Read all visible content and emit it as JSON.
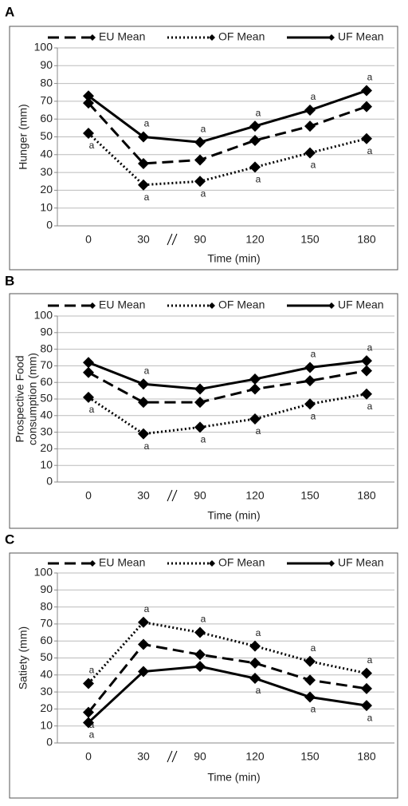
{
  "chart_data": [
    {
      "type": "line",
      "panel": "A",
      "ylabel": "Hunger (mm)",
      "xlabel": "Time (min)",
      "categories": [
        "0",
        "30",
        "90",
        "120",
        "150",
        "180"
      ],
      "ylim": [
        0,
        100
      ],
      "yticks": [
        0,
        10,
        20,
        30,
        40,
        50,
        60,
        70,
        80,
        90,
        100
      ],
      "grid": true,
      "series": [
        {
          "name": "EU Mean",
          "color": "#000000",
          "dash": "dashed",
          "values": [
            69,
            35,
            37,
            48,
            56,
            67
          ],
          "annotations": [
            null,
            null,
            null,
            null,
            null,
            null
          ]
        },
        {
          "name": "OF Mean",
          "color": "#000000",
          "dash": "dotted",
          "values": [
            52,
            23,
            25,
            33,
            41,
            49
          ],
          "annotations": [
            "a",
            "a",
            "a",
            "a",
            "a",
            "a"
          ]
        },
        {
          "name": "UF Mean",
          "color": "#000000",
          "dash": "solid",
          "values": [
            73,
            50,
            47,
            56,
            65,
            76
          ],
          "annotations": [
            null,
            "a",
            "a",
            "a",
            "a",
            "a"
          ]
        }
      ]
    },
    {
      "type": "line",
      "panel": "B",
      "ylabel": [
        "Prospective Food",
        "consumption (mm)"
      ],
      "xlabel": "Time (min)",
      "categories": [
        "0",
        "30",
        "90",
        "120",
        "150",
        "180"
      ],
      "ylim": [
        0,
        100
      ],
      "yticks": [
        0,
        10,
        20,
        30,
        40,
        50,
        60,
        70,
        80,
        90,
        100
      ],
      "grid": true,
      "series": [
        {
          "name": "EU Mean",
          "color": "#000000",
          "dash": "dashed",
          "values": [
            66,
            48,
            48,
            56,
            61,
            67
          ],
          "annotations": [
            null,
            null,
            null,
            null,
            null,
            null
          ]
        },
        {
          "name": "OF Mean",
          "color": "#000000",
          "dash": "dotted",
          "values": [
            51,
            29,
            33,
            38,
            47,
            53
          ],
          "annotations": [
            "a",
            "a",
            "a",
            "a",
            "a",
            "a"
          ]
        },
        {
          "name": "UF Mean",
          "color": "#000000",
          "dash": "solid",
          "values": [
            72,
            59,
            56,
            62,
            69,
            73
          ],
          "annotations": [
            null,
            "a",
            null,
            null,
            "a",
            "a"
          ]
        }
      ]
    },
    {
      "type": "line",
      "panel": "C",
      "ylabel": "Satiety (mm)",
      "xlabel": "Time (min)",
      "categories": [
        "0",
        "30",
        "90",
        "120",
        "150",
        "180"
      ],
      "ylim": [
        0,
        100
      ],
      "yticks": [
        0,
        10,
        20,
        30,
        40,
        50,
        60,
        70,
        80,
        90,
        100
      ],
      "grid": true,
      "series": [
        {
          "name": "EU Mean",
          "color": "#000000",
          "dash": "dashed",
          "values": [
            18,
            58,
            52,
            47,
            37,
            32
          ],
          "annotations": [
            "a",
            null,
            null,
            null,
            null,
            null
          ]
        },
        {
          "name": "OF Mean",
          "color": "#000000",
          "dash": "dotted",
          "values": [
            35,
            71,
            65,
            57,
            48,
            41
          ],
          "annotations": [
            "a",
            "a",
            "a",
            "a",
            "a",
            "a"
          ]
        },
        {
          "name": "UF Mean",
          "color": "#000000",
          "dash": "solid",
          "values": [
            12,
            42,
            45,
            38,
            27,
            22
          ],
          "annotations": [
            "a",
            null,
            null,
            "a",
            "a",
            "a"
          ]
        }
      ]
    }
  ]
}
